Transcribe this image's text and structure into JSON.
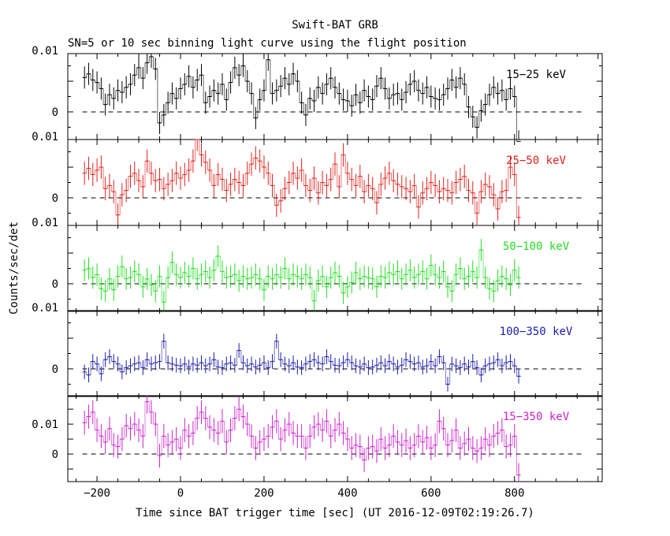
{
  "title": "Swift-BAT GRB",
  "subtitle": "SN=5 or 10 sec binning light curve using the flight position",
  "chart_data": {
    "type": "line",
    "xlabel": "Time since BAT trigger time [sec] (UT 2016-12-09T02:19:26.7)",
    "ylabel": "Counts/sec/det",
    "xlim": [
      -270,
      1010
    ],
    "x_ticks": [
      -200,
      0,
      200,
      400,
      600,
      800
    ],
    "x_tick_labels": [
      "−200",
      "0",
      "200",
      "400",
      "600",
      "800"
    ],
    "y_ticks": [
      0,
      0.01
    ],
    "y_tick_labels": [
      "0",
      "0.01"
    ],
    "x_start": -235,
    "bin_width": 10,
    "zero_line": "dashed",
    "panels": [
      {
        "name": "15−25 keV",
        "color": "#000000",
        "ylim": [
          -0.0045,
          0.0095
        ],
        "error": 0.0018,
        "values": [
          0.0056,
          0.0062,
          0.0052,
          0.0048,
          0.0038,
          0.0012,
          0.0028,
          0.0022,
          0.0035,
          0.0032,
          0.004,
          0.0045,
          0.006,
          0.0072,
          0.0055,
          0.008,
          0.009,
          0.007,
          -0.0018,
          -0.0005,
          0.0015,
          0.003,
          0.0022,
          0.0038,
          0.0045,
          0.0058,
          0.004,
          0.0052,
          0.006,
          0.0015,
          0.0025,
          0.0035,
          0.003,
          0.0045,
          0.002,
          0.0048,
          0.0072,
          0.006,
          0.0075,
          0.005,
          0.003,
          -0.001,
          0.002,
          0.0035,
          0.0085,
          0.003,
          0.0035,
          0.0042,
          0.0055,
          0.0045,
          0.0062,
          0.005,
          0.0015,
          -0.0005,
          0.0022,
          0.0018,
          0.004,
          0.003,
          0.0045,
          0.0055,
          0.004,
          0.003,
          0.002,
          0.0018,
          0.001,
          0.0028,
          0.0015,
          0.0035,
          0.0025,
          0.002,
          0.0042,
          0.0055,
          0.0038,
          0.0022,
          0.0028,
          0.003,
          0.002,
          0.0032,
          0.0045,
          0.005,
          0.0035,
          0.003,
          0.004,
          0.0025,
          0.0022,
          0.002,
          0.0028,
          0.0038,
          0.0052,
          0.004,
          0.0055,
          0.0045,
          0.0008,
          -0.0008,
          -0.0025,
          0.0002,
          0.0012,
          0.0028,
          0.004,
          0.003,
          0.0035,
          0.002,
          0.0038,
          0.0025,
          -0.0048
        ]
      },
      {
        "name": "25−50 keV",
        "color": "#e0201c",
        "ylim": [
          -0.0045,
          0.0095
        ],
        "error": 0.0019,
        "values": [
          0.004,
          0.0048,
          0.0038,
          0.0045,
          0.005,
          0.0015,
          0.002,
          0.001,
          -0.0028,
          0.0005,
          0.0012,
          0.0035,
          0.004,
          0.0028,
          0.0018,
          0.006,
          0.004,
          0.0028,
          0.003,
          0.0015,
          0.0022,
          0.0028,
          0.004,
          0.0032,
          0.0038,
          0.0045,
          0.006,
          0.0095,
          0.007,
          0.0058,
          0.0045,
          0.002,
          0.0038,
          0.003,
          0.0012,
          0.0022,
          0.003,
          0.0025,
          0.002,
          0.004,
          0.0055,
          0.0065,
          0.006,
          0.005,
          0.004,
          0.002,
          -0.0012,
          -0.0005,
          0.0015,
          0.0025,
          0.004,
          0.0032,
          0.0045,
          0.002,
          0.0012,
          0.0032,
          0.0008,
          0.0025,
          0.002,
          0.003,
          0.0055,
          0.0018,
          0.007,
          0.004,
          0.003,
          0.002,
          0.0035,
          0.001,
          0.002,
          0.0015,
          -0.0008,
          0.0022,
          0.0032,
          0.004,
          0.0028,
          0.0022,
          0.0018,
          0.0015,
          0.001,
          0.002,
          -0.0015,
          0.0008,
          0.0015,
          0.0025,
          0.002,
          0.001,
          0.0015,
          0.0012,
          0.0008,
          0.0025,
          0.003,
          0.0035,
          0.0012,
          0.0008,
          -0.0025,
          0.001,
          0.0022,
          0.0018,
          0.0005,
          -0.0018,
          0.001,
          0.0012,
          0.005,
          0.0038,
          -0.0032
        ]
      },
      {
        "name": "50−100 keV",
        "color": "#22dd22",
        "ylim": [
          -0.0045,
          0.0095
        ],
        "error": 0.0018,
        "values": [
          0.0022,
          0.0025,
          0.001,
          0.0015,
          -0.0008,
          -0.0012,
          0.0008,
          -0.001,
          0.0012,
          0.0028,
          0.0008,
          0.001,
          0.002,
          0.0015,
          -0.0005,
          0.0008,
          -0.0002,
          -0.0012,
          0.0012,
          -0.003,
          0.001,
          0.0035,
          0.0015,
          0.001,
          0.0018,
          0.0012,
          0.0025,
          0.0008,
          0.0015,
          0.002,
          0.001,
          0.0022,
          0.0045,
          0.002,
          0.001,
          0.0012,
          0.0015,
          0.0005,
          0.0012,
          0.0008,
          0.001,
          0.0015,
          0.0008,
          -0.001,
          0.0012,
          0.0008,
          0.0015,
          0.001,
          0.0025,
          0.0008,
          0.0015,
          0.0012,
          0.0008,
          0.0015,
          0.001,
          -0.0028,
          0.0005,
          0.0012,
          -0.0005,
          0.001,
          0.0018,
          0.0012,
          -0.0015,
          -0.0005,
          0.0002,
          0.0018,
          0.0008,
          0.0012,
          0.001,
          0.0008,
          -0.0005,
          0.0012,
          0.001,
          0.0018,
          0.0015,
          0.002,
          0.0008,
          0.0015,
          0.0022,
          0.001,
          0.0015,
          0.002,
          0.0008,
          0.003,
          0.0015,
          0.001,
          0.002,
          -0.0005,
          -0.0012,
          0.0015,
          0.0025,
          0.0008,
          0.0012,
          0.002,
          0.001,
          0.0055,
          0.001,
          -0.0008,
          -0.0012,
          0.0005,
          0.0012,
          0.0008,
          -0.0002,
          0.0022,
          0.001
        ]
      },
      {
        "name": "100−350 keV",
        "color": "#1c1ca8",
        "ylim": [
          -0.0045,
          0.0095
        ],
        "error": 0.0012,
        "values": [
          -0.0005,
          -0.001,
          0.0012,
          0.0008,
          -0.0008,
          0.0015,
          0.002,
          0.0012,
          0.0008,
          -0.0005,
          0.0002,
          0.0005,
          0.0008,
          0.001,
          0.0002,
          0.0015,
          0.0008,
          0.001,
          0.0012,
          0.0045,
          0.001,
          0.0008,
          0.0006,
          0.0005,
          0.0008,
          0.0003,
          0.0008,
          0.0006,
          0.001,
          0.0005,
          0.0008,
          0.0015,
          0.0003,
          0.0002,
          0.0008,
          0.001,
          0.0006,
          0.003,
          0.001,
          0.0005,
          0.0008,
          0.0003,
          0.0006,
          0.001,
          0.0002,
          0.0012,
          0.0045,
          0.0015,
          0.0008,
          0.0005,
          0.001,
          0.0003,
          0.0002,
          0.0008,
          0.0012,
          0.0015,
          0.001,
          0.0008,
          0.002,
          0.0012,
          0.0006,
          0.0005,
          0.001,
          0.0015,
          0.001,
          0.0005,
          0.0003,
          0.0008,
          0.0002,
          0.0003,
          0.0006,
          0.001,
          0.0005,
          0.0012,
          0.0008,
          0.0003,
          0.0006,
          0.0015,
          0.0012,
          0.0008,
          0.001,
          0.0003,
          0.0005,
          0.0012,
          0.0005,
          0.002,
          0.001,
          -0.0025,
          0.0008,
          0.0005,
          0.0002,
          0.0008,
          0.0003,
          0.0012,
          0.0002,
          -0.001,
          0.0005,
          0.0008,
          0.001,
          0.0015,
          0.0005,
          0.001,
          0.0012,
          0.0005,
          -0.0012
        ]
      },
      {
        "name": "15−350 keV",
        "color": "#cc22cc",
        "ylim": [
          -0.0092,
          0.0195
        ],
        "error": 0.004,
        "values": [
          0.0105,
          0.0125,
          0.014,
          0.008,
          0.006,
          0.004,
          0.0085,
          0.003,
          0.0025,
          0.005,
          0.0095,
          0.0085,
          0.01,
          0.008,
          0.006,
          0.0175,
          0.014,
          0.01,
          -0.0005,
          0.006,
          0.003,
          0.004,
          0.005,
          0.002,
          0.008,
          0.006,
          0.007,
          0.012,
          0.014,
          0.012,
          0.009,
          0.008,
          0.007,
          0.011,
          0.004,
          0.008,
          0.012,
          0.015,
          0.0125,
          0.01,
          0.006,
          0.002,
          0.004,
          0.005,
          0.006,
          0.009,
          0.011,
          0.005,
          0.008,
          0.01,
          0.007,
          0.006,
          0.006,
          0.002,
          0.006,
          0.009,
          0.01,
          0.008,
          0.011,
          0.006,
          0.008,
          0.01,
          0.007,
          0.005,
          0.002,
          0.003,
          0.0025,
          -0.002,
          0.002,
          0.0025,
          0.001,
          0.005,
          0.002,
          0.003,
          0.006,
          0.004,
          0.003,
          0.0045,
          0.002,
          0.003,
          0.006,
          0.004,
          0.0055,
          0.002,
          0.003,
          0.011,
          0.0085,
          0.003,
          0.0045,
          0.008,
          0.002,
          0.0035,
          0.005,
          0.002,
          0.001,
          0.002,
          0.005,
          0.003,
          0.006,
          0.007,
          0.008,
          0.0025,
          0.003,
          0.006,
          -0.007
        ]
      }
    ]
  }
}
